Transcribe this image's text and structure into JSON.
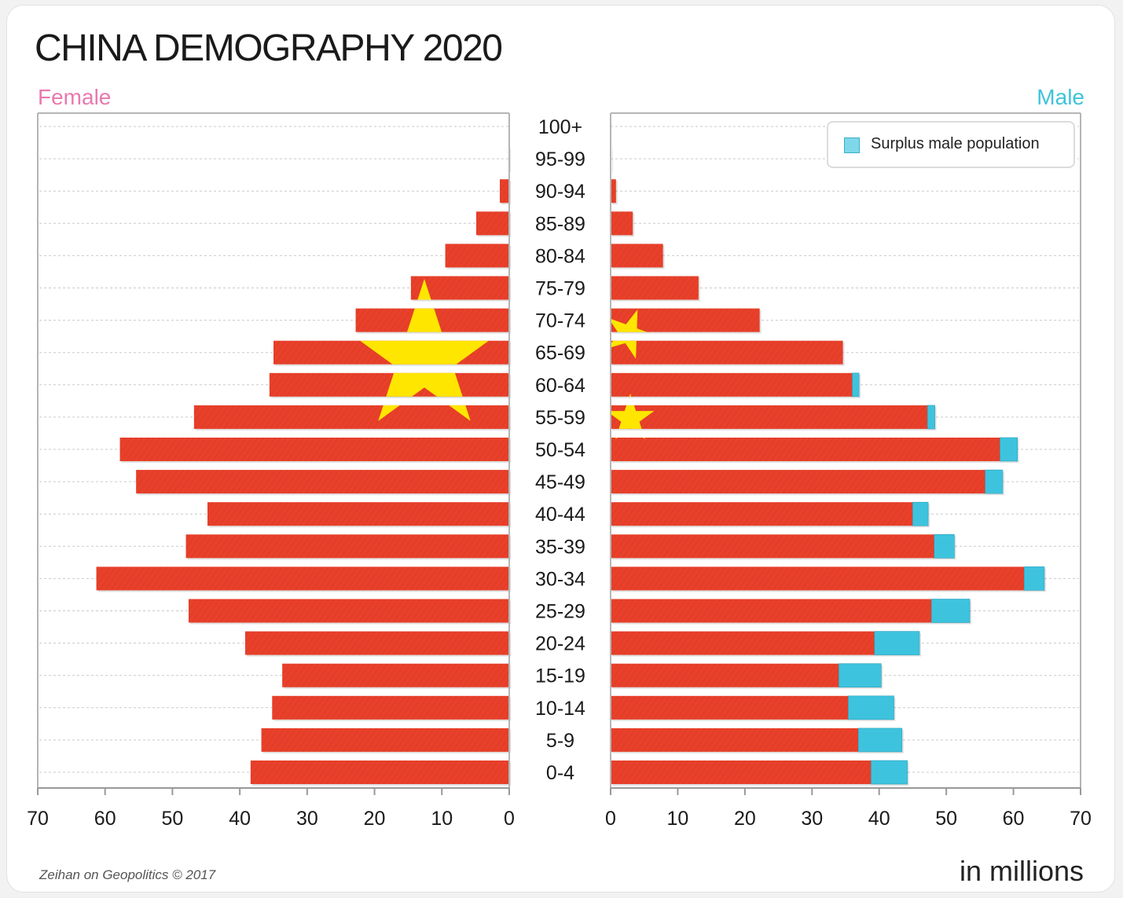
{
  "header": {
    "title": "CHINA DEMOGRAPHY 2020",
    "female_label": "Female",
    "male_label": "Male"
  },
  "footer": {
    "source": "Zeihan on Geopolitics © 2017",
    "units": "in millions"
  },
  "legend": {
    "surplus_label": "Surplus male population"
  },
  "colors": {
    "bar": "#e8402a",
    "surplus": "#3ec3de",
    "star": "#ffe600",
    "female_label": "#e879b0",
    "male_label": "#3fc3da"
  },
  "chart_data": {
    "type": "bar",
    "orientation": "horizontal-pyramid",
    "title": "CHINA DEMOGRAPHY 2020",
    "categories": [
      "100+",
      "95-99",
      "90-94",
      "85-89",
      "80-84",
      "75-79",
      "70-74",
      "65-69",
      "60-64",
      "55-59",
      "50-54",
      "45-49",
      "40-44",
      "35-39",
      "30-34",
      "25-29",
      "20-24",
      "15-19",
      "10-14",
      "5-9",
      "0-4"
    ],
    "series": [
      {
        "name": "Female",
        "values": [
          0,
          0.1,
          1.4,
          4.9,
          9.5,
          14.6,
          22.8,
          35.0,
          35.6,
          46.8,
          57.8,
          55.4,
          44.8,
          48.0,
          61.3,
          47.6,
          39.2,
          33.7,
          35.2,
          36.8,
          38.4
        ]
      },
      {
        "name": "Male",
        "values": [
          0,
          0.1,
          0.8,
          3.3,
          7.8,
          13.1,
          22.2,
          34.6,
          36.0,
          47.2,
          58.0,
          55.8,
          45.0,
          48.2,
          61.6,
          47.8,
          39.3,
          34.0,
          35.4,
          36.9,
          38.8
        ]
      },
      {
        "name": "Surplus male population",
        "values": [
          0,
          0,
          0,
          0,
          0,
          0,
          0,
          0,
          1.0,
          1.1,
          2.6,
          2.6,
          2.3,
          3.0,
          3.0,
          5.7,
          6.7,
          6.3,
          6.8,
          6.5,
          5.4
        ]
      }
    ],
    "xlim": [
      0,
      70
    ],
    "xticks": [
      "70",
      "60",
      "50",
      "40",
      "30",
      "20",
      "10",
      "0"
    ],
    "xticks_right": [
      "0",
      "10",
      "20",
      "30",
      "40",
      "50",
      "60",
      "70"
    ],
    "grid": true,
    "legend_position": "top-right"
  }
}
